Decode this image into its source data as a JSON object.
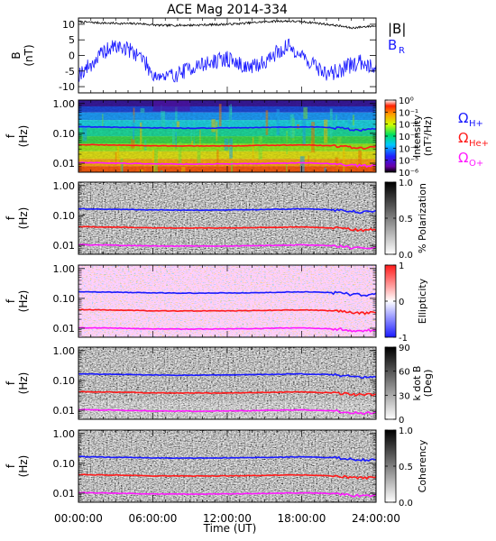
{
  "title": "ACE Mag 2014-334",
  "colors": {
    "B_total": "#000000",
    "B_R": "#1a1aff",
    "H_plus": "#1a1aff",
    "He_plus": "#ff1a1a",
    "O_plus": "#ff1aff"
  },
  "legend": {
    "B_total": "|B|",
    "B_R": "B",
    "B_R_sub": "R",
    "omega": "Ω",
    "H_sub": "H+",
    "He_sub": "He+",
    "O_sub": "O+"
  },
  "x_axis": {
    "title": "Time (UT)",
    "ticks": [
      "00:00:00",
      "06:00:00",
      "12:00:00",
      "18:00:00",
      "24:00:00"
    ],
    "range_hours": [
      0,
      24
    ]
  },
  "chart_data": [
    {
      "type": "line",
      "panel": "magnetic-field",
      "ylabel": "B",
      "yunit": "(nT)",
      "ylim": [
        -12,
        12
      ],
      "yticks": [
        "10",
        "5",
        "0",
        "-5",
        "-10"
      ],
      "x_hours": [
        0,
        1,
        2,
        3,
        4,
        5,
        6,
        7,
        8,
        9,
        10,
        11,
        12,
        13,
        14,
        15,
        16,
        17,
        18,
        19,
        20,
        21,
        22,
        23,
        24
      ],
      "series": [
        {
          "name": "|B|",
          "values": [
            10.8,
            10.6,
            10.4,
            10.3,
            10.2,
            10.2,
            9.8,
            9.6,
            9.7,
            9.7,
            9.8,
            9.9,
            10.0,
            10.2,
            10.5,
            10.8,
            11.0,
            11.0,
            10.8,
            10.5,
            10.0,
            9.5,
            8.8,
            9.2,
            9.5
          ]
        },
        {
          "name": "B_R",
          "values": [
            -6,
            -3,
            1,
            3,
            2,
            0,
            -6,
            -7,
            -6,
            -4,
            -3,
            -2,
            -1,
            -3,
            -4,
            -2,
            1,
            3,
            0,
            -3,
            -6,
            -5,
            -3,
            -2,
            -4
          ]
        }
      ]
    },
    {
      "type": "heatmap",
      "panel": "intensity",
      "ylabel": "f",
      "yunit": "(Hz)",
      "yscale": "log",
      "ylim": [
        0.005,
        1.3
      ],
      "yticks": [
        "1.00",
        "0.10",
        "0.01"
      ],
      "colorbar": {
        "label": "Intensity",
        "unit": "(nT²/Hz)",
        "ticks": [
          "10⁰",
          "10⁻¹",
          "10⁻²",
          "10⁻³",
          "10⁻⁴",
          "10⁻⁵",
          "10⁻⁶"
        ],
        "scale": "rainbow"
      }
    },
    {
      "type": "heatmap",
      "panel": "polarization",
      "ylabel": "f",
      "yunit": "(Hz)",
      "yscale": "log",
      "ylim": [
        0.005,
        1.3
      ],
      "yticks": [
        "1.00",
        "0.10",
        "0.01"
      ],
      "colorbar": {
        "label": "% Polarization",
        "ticks": [
          "1.0",
          "0.5",
          "0.0"
        ],
        "scale": "gray"
      }
    },
    {
      "type": "heatmap",
      "panel": "ellipticity",
      "ylabel": "f",
      "yunit": "(Hz)",
      "yscale": "log",
      "ylim": [
        0.005,
        1.3
      ],
      "yticks": [
        "1.00",
        "0.10",
        "0.01"
      ],
      "colorbar": {
        "label": "Ellipticity",
        "ticks": [
          "1",
          "0",
          "-1"
        ],
        "scale": "blue-white-red"
      }
    },
    {
      "type": "heatmap",
      "panel": "wave-normal-angle",
      "ylabel": "f",
      "yunit": "(Hz)",
      "yscale": "log",
      "ylim": [
        0.005,
        1.3
      ],
      "yticks": [
        "1.00",
        "0.10",
        "0.01"
      ],
      "colorbar": {
        "label": "k dot B",
        "unit": "(Deg)",
        "ticks": [
          "90",
          "60",
          "30",
          "0"
        ],
        "scale": "gray"
      }
    },
    {
      "type": "heatmap",
      "panel": "coherency",
      "ylabel": "f",
      "yunit": "(Hz)",
      "yscale": "log",
      "ylim": [
        0.005,
        1.3
      ],
      "yticks": [
        "1.00",
        "0.10",
        "0.01"
      ],
      "colorbar": {
        "label": "Coherency",
        "ticks": [
          "1.0",
          "0.5",
          "0.0"
        ],
        "scale": "gray"
      }
    }
  ],
  "gyrofrequency_lines": {
    "x_hours": [
      0,
      2,
      4,
      6,
      8,
      10,
      12,
      14,
      16,
      18,
      20,
      21,
      22,
      23,
      24
    ],
    "H_plus": [
      0.168,
      0.162,
      0.158,
      0.152,
      0.15,
      0.15,
      0.152,
      0.155,
      0.16,
      0.165,
      0.158,
      0.15,
      0.135,
      0.13,
      0.14
    ],
    "He_plus": [
      0.042,
      0.041,
      0.04,
      0.038,
      0.038,
      0.038,
      0.038,
      0.039,
      0.04,
      0.041,
      0.039,
      0.037,
      0.034,
      0.032,
      0.035
    ],
    "O_plus": [
      0.0105,
      0.0102,
      0.0099,
      0.0095,
      0.0094,
      0.0094,
      0.0095,
      0.0097,
      0.01,
      0.0103,
      0.0098,
      0.0094,
      0.0085,
      0.0081,
      0.0087
    ]
  }
}
